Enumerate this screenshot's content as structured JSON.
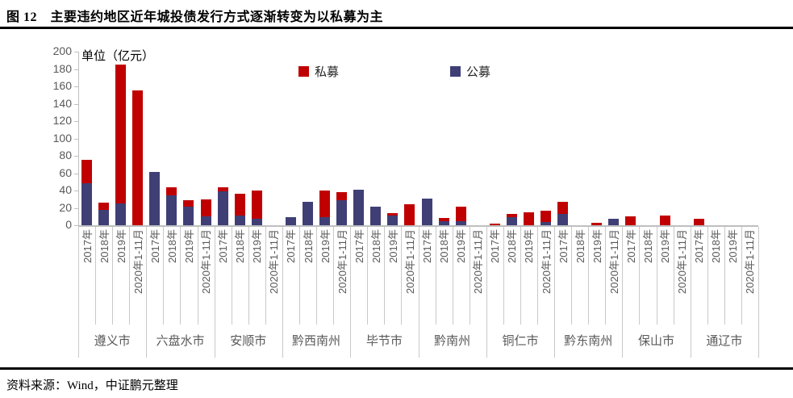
{
  "figure": {
    "title": "图 12　主要违约地区近年城投债发行方式逐渐转变为以私募为主",
    "source": "资料来源：Wind，中证鹏元整理"
  },
  "chart": {
    "unit_label": "单位（亿元）",
    "legend": [
      {
        "label": "私募",
        "color": "#C00000"
      },
      {
        "label": "公募",
        "color": "#3F3F76"
      }
    ]
  },
  "chart_data": {
    "type": "bar",
    "stacked": true,
    "title": "主要违约地区近年城投债发行方式",
    "unit": "亿元",
    "ylim": [
      0,
      200
    ],
    "yticks": [
      0,
      20,
      40,
      60,
      80,
      100,
      120,
      140,
      160,
      180,
      200
    ],
    "grid": false,
    "legend_position": "top",
    "groups": [
      "遵义市",
      "六盘水市",
      "安顺市",
      "黔西南州",
      "毕节市",
      "黔南州",
      "铜仁市",
      "黔东南州",
      "保山市",
      "通辽市"
    ],
    "periods": [
      "2017年",
      "2018年",
      "2019年",
      "2020年1-11月"
    ],
    "series": [
      {
        "name": "公募",
        "color": "#3F3F76",
        "values": [
          [
            48,
            18,
            25,
            0
          ],
          [
            61,
            34,
            21,
            10
          ],
          [
            39,
            11,
            7,
            0
          ],
          [
            9,
            27,
            9,
            29
          ],
          [
            41,
            21,
            11,
            0
          ],
          [
            31,
            5,
            5,
            0
          ],
          [
            0,
            9,
            0,
            4
          ],
          [
            13,
            0,
            0,
            7
          ],
          [
            0,
            0,
            0,
            0
          ],
          [
            0,
            0,
            0,
            0
          ]
        ]
      },
      {
        "name": "私募",
        "color": "#C00000",
        "values": [
          [
            27,
            8,
            160,
            155
          ],
          [
            0,
            10,
            8,
            20
          ],
          [
            5,
            25,
            33,
            0
          ],
          [
            0,
            0,
            31,
            9
          ],
          [
            0,
            0,
            3,
            24
          ],
          [
            0,
            3,
            16,
            0
          ],
          [
            2,
            4,
            15,
            13
          ],
          [
            14,
            0,
            3,
            0
          ],
          [
            10,
            0,
            11,
            0
          ],
          [
            7,
            0,
            0,
            0
          ]
        ]
      }
    ]
  }
}
